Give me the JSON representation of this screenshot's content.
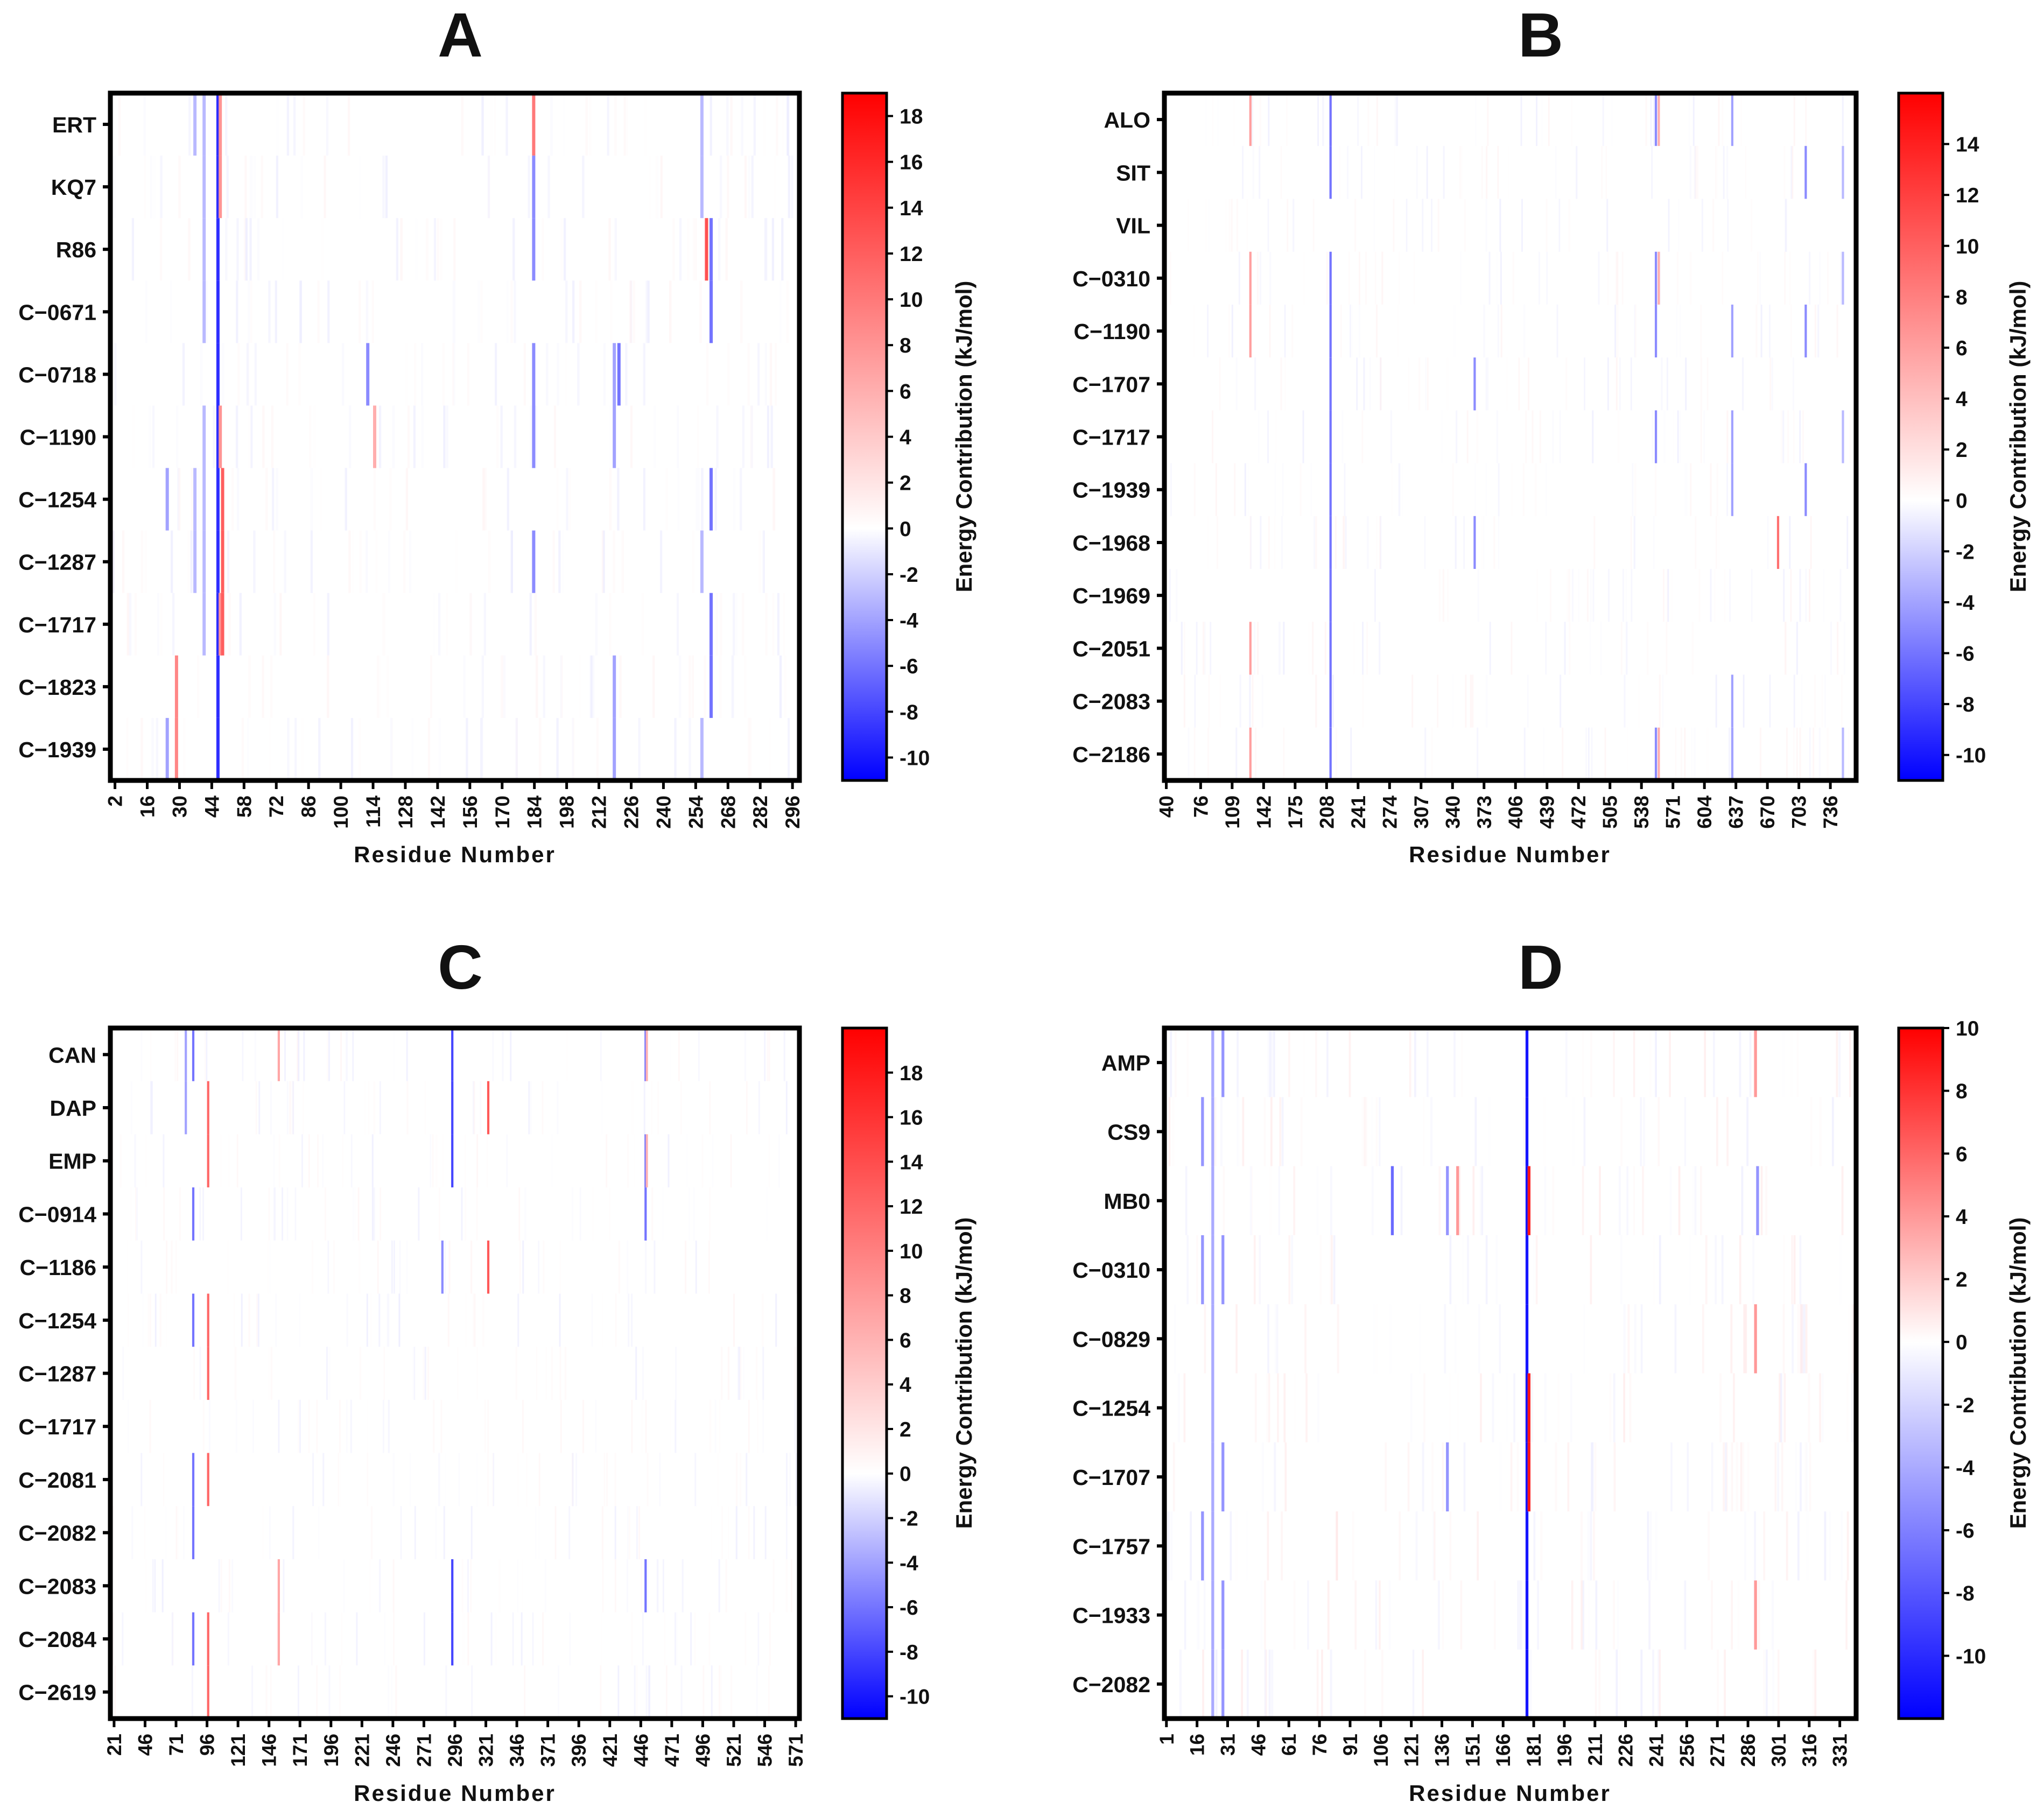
{
  "figure": {
    "colorbar_label": "Energy Contribution (kJ/mol)",
    "xlabel": "Residue Number"
  },
  "colors": {
    "negative": "#0000ff",
    "zero": "#ffffff",
    "positive": "#ff0000",
    "frame": "#000000"
  },
  "chart_data": [
    {
      "type": "heatmap",
      "panel": "A",
      "title": "A",
      "xlabel": "Residue Number",
      "colorbar_label": "Energy Contribution (kJ/mol)",
      "rows": [
        "ERT",
        "KQ7",
        "R86",
        "C−0671",
        "C−0718",
        "C−1190",
        "C−1254",
        "C−1287",
        "C−1717",
        "C−1823",
        "C−1939"
      ],
      "x_ticks": [
        2,
        16,
        30,
        44,
        58,
        72,
        86,
        100,
        114,
        128,
        142,
        156,
        170,
        184,
        198,
        212,
        226,
        240,
        254,
        268,
        282,
        296
      ],
      "x_range": [
        0,
        299
      ],
      "colorbar_ticks": [
        18,
        16,
        14,
        12,
        10,
        8,
        6,
        4,
        2,
        0,
        -2,
        -4,
        -6,
        -8,
        -10
      ],
      "colorbar_range": [
        -11,
        19
      ],
      "hotspots": [
        {
          "residue": 46,
          "rows": [
            0,
            1,
            2,
            3,
            4,
            5,
            6,
            7,
            8,
            9,
            10
          ],
          "value": -9
        },
        {
          "residue": 47,
          "rows": [
            0,
            1,
            5,
            8
          ],
          "value": 8
        },
        {
          "residue": 48,
          "rows": [
            6,
            7,
            8
          ],
          "value": 12
        },
        {
          "residue": 40,
          "rows": [
            0,
            1,
            2,
            3,
            5,
            6,
            7,
            8
          ],
          "value": -3
        },
        {
          "residue": 36,
          "rows": [
            0,
            6,
            7
          ],
          "value": -3
        },
        {
          "residue": 28,
          "rows": [
            9,
            10
          ],
          "value": 9
        },
        {
          "residue": 24,
          "rows": [
            6,
            10
          ],
          "value": -4
        },
        {
          "residue": 183,
          "rows": [
            0
          ],
          "value": 10
        },
        {
          "residue": 183,
          "rows": [
            1,
            2,
            4,
            5,
            7
          ],
          "value": -5
        },
        {
          "residue": 111,
          "rows": [
            4
          ],
          "value": -5
        },
        {
          "residue": 114,
          "rows": [
            5
          ],
          "value": 6
        },
        {
          "residue": 218,
          "rows": [
            4,
            5,
            9,
            10
          ],
          "value": -4
        },
        {
          "residue": 220,
          "rows": [
            4
          ],
          "value": -6
        },
        {
          "residue": 258,
          "rows": [
            2
          ],
          "value": 13
        },
        {
          "residue": 260,
          "rows": [
            2,
            3,
            6,
            8,
            9
          ],
          "value": -6
        },
        {
          "residue": 256,
          "rows": [
            0,
            1,
            7,
            10
          ],
          "value": -3
        }
      ]
    },
    {
      "type": "heatmap",
      "panel": "B",
      "title": "B",
      "xlabel": "Residue Number",
      "colorbar_label": "Energy Contribution (kJ/mol)",
      "rows": [
        "ALO",
        "SIT",
        "VIL",
        "C−0310",
        "C−1190",
        "C−1707",
        "C−1717",
        "C−1939",
        "C−1968",
        "C−1969",
        "C−2051",
        "C−2083",
        "C−2186"
      ],
      "x_ticks": [
        40,
        76,
        109,
        142,
        175,
        208,
        241,
        274,
        307,
        340,
        373,
        406,
        439,
        472,
        505,
        538,
        571,
        604,
        637,
        670,
        703,
        736
      ],
      "x_range": [
        38,
        763
      ],
      "colorbar_ticks": [
        14,
        12,
        10,
        8,
        6,
        4,
        2,
        0,
        -2,
        -4,
        -6,
        -8,
        -10
      ],
      "colorbar_range": [
        -11,
        16
      ],
      "hotspots": [
        {
          "residue": 211,
          "rows": [
            0,
            1,
            3,
            4,
            5,
            6,
            7,
            8,
            9,
            10,
            11,
            12
          ],
          "value": -6
        },
        {
          "residue": 127,
          "rows": [
            0,
            3,
            4,
            10,
            12
          ],
          "value": 6
        },
        {
          "residue": 552,
          "rows": [
            0,
            3,
            4,
            6,
            12
          ],
          "value": -5
        },
        {
          "residue": 555,
          "rows": [
            0,
            3,
            12
          ],
          "value": 5
        },
        {
          "residue": 362,
          "rows": [
            5,
            8
          ],
          "value": -5
        },
        {
          "residue": 632,
          "rows": [
            0,
            4,
            6,
            7,
            11,
            12
          ],
          "value": -4
        },
        {
          "residue": 680,
          "rows": [
            8
          ],
          "value": 9
        },
        {
          "residue": 709,
          "rows": [
            1,
            4,
            7
          ],
          "value": -5
        },
        {
          "residue": 748,
          "rows": [
            1,
            3,
            6,
            12
          ],
          "value": -3
        }
      ]
    },
    {
      "type": "heatmap",
      "panel": "C",
      "title": "C",
      "xlabel": "Residue Number",
      "colorbar_label": "Energy Contribution (kJ/mol)",
      "rows": [
        "CAN",
        "DAP",
        "EMP",
        "C−0914",
        "C−1186",
        "C−1254",
        "C−1287",
        "C−1717",
        "C−2081",
        "C−2082",
        "C−2083",
        "C−2084",
        "C−2619"
      ],
      "x_ticks": [
        21,
        46,
        71,
        96,
        121,
        146,
        171,
        196,
        221,
        246,
        271,
        296,
        321,
        346,
        371,
        396,
        421,
        446,
        471,
        496,
        521,
        546,
        571
      ],
      "x_range": [
        18,
        574
      ],
      "colorbar_ticks": [
        18,
        16,
        14,
        12,
        10,
        8,
        6,
        4,
        2,
        0,
        -2,
        -4,
        -6,
        -8,
        -10
      ],
      "colorbar_range": [
        -11,
        20
      ],
      "hotspots": [
        {
          "residue": 96,
          "rows": [
            1,
            2,
            5,
            6,
            8,
            11,
            12
          ],
          "value": 12
        },
        {
          "residue": 84,
          "rows": [
            0,
            3,
            5,
            8,
            9,
            11
          ],
          "value": -6
        },
        {
          "residue": 78,
          "rows": [
            0,
            1
          ],
          "value": -4
        },
        {
          "residue": 153,
          "rows": [
            0,
            10,
            11
          ],
          "value": 7
        },
        {
          "residue": 293,
          "rows": [
            0,
            1,
            2,
            10,
            11
          ],
          "value": -8
        },
        {
          "residue": 285,
          "rows": [
            4
          ],
          "value": -5
        },
        {
          "residue": 322,
          "rows": [
            1,
            4
          ],
          "value": 13
        },
        {
          "residue": 449,
          "rows": [
            0,
            2,
            3,
            10
          ],
          "value": -6
        },
        {
          "residue": 450,
          "rows": [
            0,
            2
          ],
          "value": 6
        }
      ]
    },
    {
      "type": "heatmap",
      "panel": "D",
      "title": "D",
      "xlabel": "Residue Number",
      "colorbar_label": "Energy Contribution (kJ/mol)",
      "rows": [
        "AMP",
        "CS9",
        "MB0",
        "C−0310",
        "C−0829",
        "C−1254",
        "C−1707",
        "C−1757",
        "C−1933",
        "C−2082"
      ],
      "x_ticks": [
        1,
        16,
        31,
        46,
        61,
        76,
        91,
        106,
        121,
        136,
        151,
        166,
        181,
        196,
        211,
        226,
        241,
        256,
        271,
        286,
        301,
        316,
        331
      ],
      "x_range": [
        0,
        339
      ],
      "colorbar_ticks": [
        10,
        8,
        6,
        4,
        2,
        0,
        -2,
        -4,
        -6,
        -8,
        -10
      ],
      "colorbar_range": [
        -12,
        10
      ],
      "hotspots": [
        {
          "residue": 177,
          "rows": [
            0,
            1,
            2,
            3,
            4,
            5,
            6,
            7,
            8,
            9
          ],
          "value": -11
        },
        {
          "residue": 178,
          "rows": [
            2,
            5,
            6
          ],
          "value": 9
        },
        {
          "residue": 23,
          "rows": [
            0,
            1,
            2,
            3,
            4,
            5,
            6,
            7,
            8,
            9
          ],
          "value": -4
        },
        {
          "residue": 28,
          "rows": [
            0,
            3,
            6,
            8,
            9
          ],
          "value": -5
        },
        {
          "residue": 18,
          "rows": [
            1,
            3,
            7
          ],
          "value": -5
        },
        {
          "residue": 111,
          "rows": [
            2
          ],
          "value": -7
        },
        {
          "residue": 138,
          "rows": [
            2,
            6
          ],
          "value": -5
        },
        {
          "residue": 143,
          "rows": [
            2
          ],
          "value": 4
        },
        {
          "residue": 289,
          "rows": [
            0,
            4,
            8
          ],
          "value": 4
        },
        {
          "residue": 290,
          "rows": [
            2
          ],
          "value": -5
        }
      ]
    }
  ]
}
